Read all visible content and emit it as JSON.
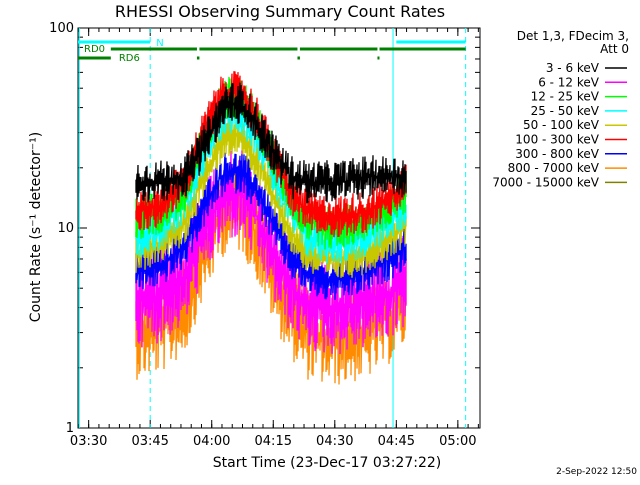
{
  "chart_data": {
    "type": "line",
    "title": "RHESSI Observing Summary Count Rates",
    "xlabel": "Start Time (23-Dec-17 03:27:22)",
    "ylabel": "Count Rate (s⁻¹ detector⁻¹)",
    "yscale": "log",
    "ylim": [
      1,
      100
    ],
    "xlim": [
      0,
      98
    ],
    "x_unit": "minutes after 03:27:22",
    "x_ticks": [
      {
        "label": "03:30",
        "x": 2.6
      },
      {
        "label": "03:45",
        "x": 17.6
      },
      {
        "label": "04:00",
        "x": 32.6
      },
      {
        "label": "04:15",
        "x": 47.6
      },
      {
        "label": "04:30",
        "x": 62.6
      },
      {
        "label": "04:45",
        "x": 77.6
      },
      {
        "label": "05:00",
        "x": 92.6
      }
    ],
    "y_ticks": [
      {
        "label": "1",
        "y": 1
      },
      {
        "label": "10",
        "y": 10
      },
      {
        "label": "100",
        "y": 100
      }
    ],
    "legend": {
      "header_line1": "Det 1,3, FDecim 3,",
      "header_line2": "Att 0",
      "placement": "right"
    },
    "series": [
      {
        "name": "3 - 6 keV",
        "color": "#000000",
        "x": [
          14,
          20,
          26,
          30,
          34,
          36,
          40,
          44,
          48,
          52,
          56,
          60,
          64,
          70,
          76,
          80
        ],
        "y": [
          17,
          17,
          18,
          24,
          35,
          42,
          42,
          32,
          23,
          18,
          17,
          17,
          17,
          18,
          18,
          18
        ]
      },
      {
        "name": "6 - 12 keV",
        "color": "#ff00ff",
        "x": [
          14,
          20,
          26,
          30,
          34,
          36,
          40,
          44,
          48,
          52,
          56,
          60,
          64,
          70,
          76,
          80
        ],
        "y": [
          4.3,
          4.6,
          5.5,
          9,
          13,
          15,
          15,
          11,
          7,
          5,
          4.2,
          4,
          4,
          4.3,
          4.8,
          5.5
        ]
      },
      {
        "name": "12 - 25 keV",
        "color": "#00ff00",
        "x": [
          14,
          20,
          26,
          30,
          34,
          36,
          40,
          44,
          48,
          52,
          56,
          60,
          64,
          70,
          76,
          80
        ],
        "y": [
          11,
          12,
          15,
          25,
          38,
          45,
          45,
          33,
          21,
          14,
          11,
          10,
          10,
          11,
          13,
          15
        ]
      },
      {
        "name": "25 - 50 keV",
        "color": "#00ffff",
        "x": [
          14,
          20,
          26,
          30,
          34,
          36,
          40,
          44,
          48,
          52,
          56,
          60,
          64,
          70,
          76,
          80
        ],
        "y": [
          9,
          10,
          13,
          22,
          33,
          38,
          38,
          28,
          18,
          12,
          9,
          8.5,
          8.5,
          9,
          11,
          13
        ]
      },
      {
        "name": "50 - 100 keV",
        "color": "#c8c800",
        "x": [
          14,
          20,
          26,
          30,
          34,
          36,
          40,
          44,
          48,
          52,
          56,
          60,
          64,
          70,
          76,
          80
        ],
        "y": [
          7.5,
          8.5,
          10.5,
          17,
          25,
          29,
          29,
          21,
          14,
          9.5,
          7.5,
          7,
          7,
          7.5,
          9,
          10.5
        ]
      },
      {
        "name": "100 - 300 keV",
        "color": "#ff0000",
        "x": [
          14,
          20,
          26,
          30,
          34,
          36,
          40,
          44,
          48,
          52,
          56,
          60,
          64,
          70,
          76,
          80
        ],
        "y": [
          12,
          13,
          17,
          28,
          42,
          48,
          47,
          35,
          22,
          15,
          12,
          11.5,
          11.5,
          12,
          14,
          17
        ]
      },
      {
        "name": "300 - 800 keV",
        "color": "#0000ff",
        "x": [
          14,
          20,
          26,
          30,
          34,
          36,
          40,
          44,
          48,
          52,
          56,
          60,
          64,
          70,
          76,
          80
        ],
        "y": [
          6,
          6.5,
          8,
          12,
          17,
          19,
          19,
          15,
          10,
          7,
          6,
          5.5,
          5.5,
          6,
          7,
          8
        ]
      },
      {
        "name": "800 - 7000 keV",
        "color": "#ff8c00",
        "x": [
          14,
          20,
          26,
          30,
          34,
          36,
          40,
          44,
          48,
          52,
          56,
          60,
          64,
          70,
          76,
          80
        ],
        "y": [
          3,
          3.2,
          4,
          7,
          11,
          13,
          13,
          9,
          5.5,
          3.8,
          3,
          2.8,
          2.8,
          3,
          3.6,
          4.5
        ]
      },
      {
        "name": "7000 - 15000 keV",
        "color": "#808000",
        "x": [],
        "y": []
      }
    ],
    "flags": [
      {
        "label": "N",
        "color": "#00ffff",
        "row": 0,
        "segments": [
          [
            0,
            17.6
          ],
          [
            77.6,
            94.5
          ]
        ]
      },
      {
        "label": "RD0",
        "color": "#008000",
        "row": 1,
        "segments": [
          [
            0,
            0
          ],
          [
            8,
            29
          ],
          [
            29.6,
            53.5
          ],
          [
            54.1,
            73
          ],
          [
            73.5,
            94.5
          ]
        ]
      },
      {
        "label": "RD6",
        "color": "#008000",
        "row": 2,
        "segments": [
          [
            0,
            8
          ],
          [
            29,
            29.6
          ],
          [
            53.5,
            54.1
          ],
          [
            73,
            73.5
          ]
        ]
      }
    ],
    "vlines": [
      {
        "x": 0.3,
        "style": "solid",
        "color": "#00ffff"
      },
      {
        "x": 17.6,
        "style": "dashed",
        "color": "#00ffff"
      },
      {
        "x": 76.8,
        "style": "solid",
        "color": "#00ffff"
      },
      {
        "x": 94.5,
        "style": "dashed",
        "color": "#00ffff"
      }
    ]
  },
  "footer": {
    "timestamp": "2-Sep-2022 12:50"
  }
}
